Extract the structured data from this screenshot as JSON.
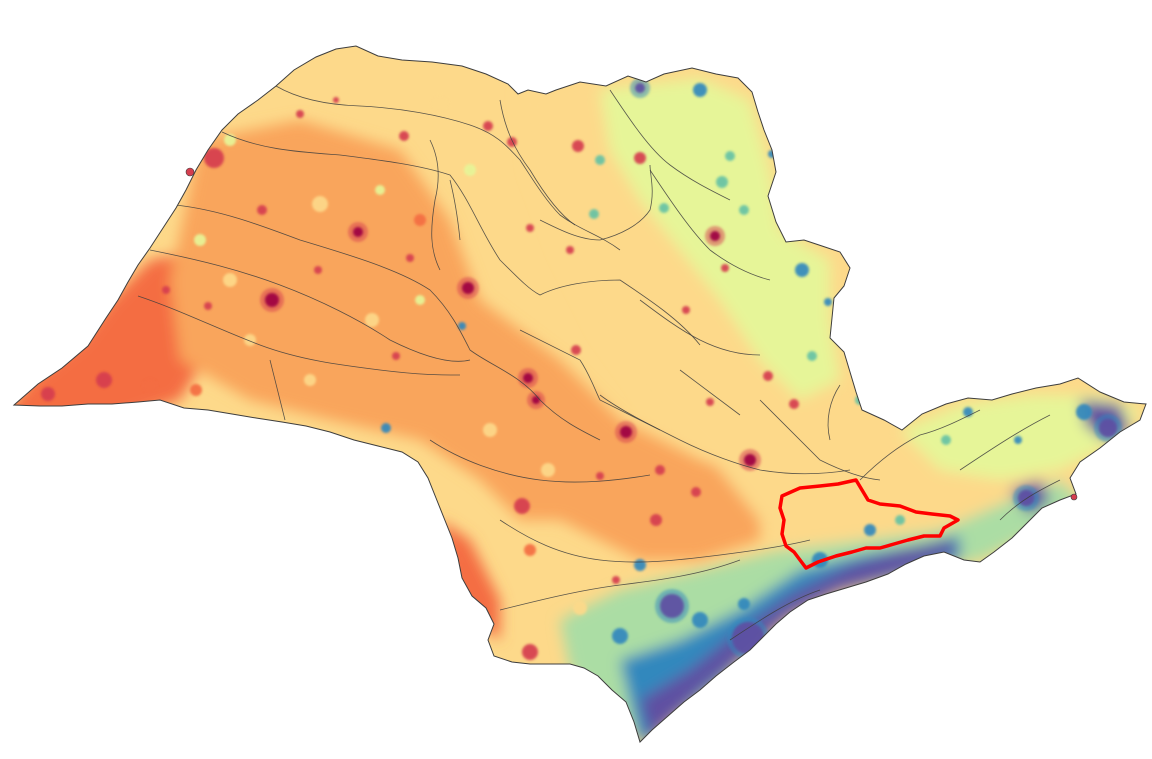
{
  "map": {
    "colors": {
      "background": "#ffffff",
      "very_high": "#9e0142",
      "high": "#d53e4f",
      "medium_high": "#f46d43",
      "medium": "#f9a55c",
      "medium_low": "#fdd98a",
      "low": "#e6f598",
      "lower": "#abdda4",
      "very_low": "#66c2a5",
      "deep_low": "#3288bd",
      "deepest_low": "#5e4fa2",
      "boundary_line": "#3d3d3d",
      "highlight_region": "#ff0000"
    },
    "legend": [],
    "title": ""
  }
}
